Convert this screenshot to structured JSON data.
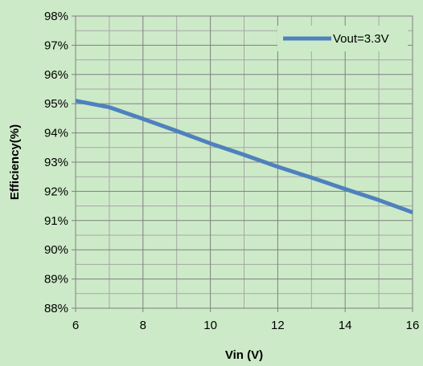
{
  "chart_data": {
    "type": "line",
    "title": "",
    "xlabel": "Vin (V)",
    "ylabel": "Efficiency(%)",
    "xlim": [
      6,
      16
    ],
    "ylim": [
      88,
      98
    ],
    "x_ticks": [
      6,
      8,
      10,
      12,
      14,
      16
    ],
    "y_ticks": [
      88,
      89,
      90,
      91,
      92,
      93,
      94,
      95,
      96,
      97,
      98
    ],
    "y_tick_labels": [
      "88%",
      "89%",
      "90%",
      "91%",
      "92%",
      "93%",
      "94%",
      "95%",
      "96%",
      "97%",
      "98%"
    ],
    "grid": true,
    "legend_position": "top-right",
    "series": [
      {
        "name": "Vout=3.3V",
        "color": "#4f81bd",
        "x": [
          6,
          7,
          8,
          9,
          10,
          11,
          12,
          13,
          14,
          15,
          16
        ],
        "y": [
          95.1,
          94.88,
          94.48,
          94.07,
          93.64,
          93.25,
          92.84,
          92.47,
          92.08,
          91.7,
          91.28
        ]
      }
    ]
  }
}
